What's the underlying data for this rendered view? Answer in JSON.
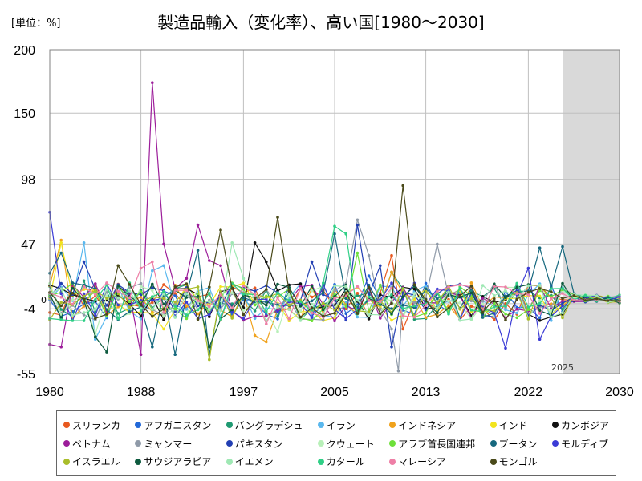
{
  "chart_data": {
    "type": "line",
    "title": "製造品輸入（変化率）、高い国[1980～2030]",
    "unit_label": "[単位：%]",
    "xlabel": "",
    "ylabel": "",
    "xlim": [
      1980,
      2030
    ],
    "ylim": [
      -55,
      200
    ],
    "x_ticks": [
      1980,
      1988,
      1997,
      2005,
      2013,
      2022,
      2030
    ],
    "y_ticks": [
      200,
      150,
      98,
      47,
      -4,
      -55
    ],
    "zero_label": "0",
    "forecast_start": 2025,
    "forecast_label": "2025",
    "grid": true,
    "legend_position": "bottom",
    "series": [
      {
        "name": "スリランカ",
        "color": "#e8591f",
        "seed": 3,
        "values": [
          [
            1981,
            -9
          ],
          [
            2010,
            38
          ],
          [
            2011,
            -20
          ],
          [
            2024,
            5
          ]
        ]
      },
      {
        "name": "アフガニスタン",
        "color": "#2268d8",
        "seed": 7,
        "values": [
          [
            2008,
            22
          ],
          [
            2016,
            10
          ]
        ]
      },
      {
        "name": "バングラデシュ",
        "color": "#1f9a72",
        "seed": 11,
        "values": [
          [
            1983,
            18
          ],
          [
            2010,
            25
          ]
        ]
      },
      {
        "name": "イラン",
        "color": "#5ab8ee",
        "seed": 13,
        "values": [
          [
            1983,
            48
          ],
          [
            1984,
            -28
          ],
          [
            1989,
            26
          ],
          [
            1990,
            30
          ]
        ]
      },
      {
        "name": "インドネシア",
        "color": "#f0a21c",
        "seed": 17,
        "values": [
          [
            1981,
            50
          ],
          [
            1998,
            -25
          ],
          [
            1999,
            -30
          ],
          [
            2010,
            25
          ]
        ]
      },
      {
        "name": "インド",
        "color": "#f2e41e",
        "seed": 19,
        "values": [
          [
            1981,
            48
          ],
          [
            1990,
            -20
          ]
        ]
      },
      {
        "name": "カンボジア",
        "color": "#111111",
        "seed": 23,
        "values": [
          [
            1998,
            48
          ],
          [
            1999,
            33
          ],
          [
            2010,
            5
          ],
          [
            2011,
            13
          ]
        ]
      },
      {
        "name": "ベトナム",
        "color": "#9c1d9a",
        "seed": 29,
        "values": [
          [
            1980,
            -32
          ],
          [
            1981,
            -34
          ],
          [
            1988,
            -40
          ],
          [
            1989,
            174
          ],
          [
            1990,
            47
          ],
          [
            1992,
            20
          ],
          [
            1993,
            62
          ],
          [
            1994,
            34
          ],
          [
            1995,
            30
          ]
        ]
      },
      {
        "name": "ミャンマー",
        "color": "#8f9aa8",
        "seed": 31,
        "values": [
          [
            2007,
            66
          ],
          [
            2008,
            38
          ],
          [
            2010,
            -20
          ],
          [
            2010.6,
            -53
          ],
          [
            2011,
            8
          ],
          [
            2013,
            4
          ],
          [
            2014,
            47
          ]
        ]
      },
      {
        "name": "パキスタン",
        "color": "#223fb3",
        "seed": 37,
        "values": [
          [
            1983,
            33
          ],
          [
            2001,
            2
          ],
          [
            2003,
            33
          ],
          [
            2007,
            62
          ],
          [
            2009,
            30
          ],
          [
            2010,
            -34
          ]
        ]
      },
      {
        "name": "クウェート",
        "color": "#b8f0b8",
        "seed": 41,
        "values": [
          [
            1984,
            -24
          ],
          [
            2000,
            -22
          ]
        ]
      },
      {
        "name": "アラブ首長国連邦",
        "color": "#6ee03a",
        "seed": 43,
        "values": [
          [
            2007,
            40
          ],
          [
            2011,
            12
          ]
        ]
      },
      {
        "name": "ブータン",
        "color": "#16687e",
        "seed": 47,
        "values": [
          [
            1980,
            24
          ],
          [
            1981,
            40
          ],
          [
            1989,
            -34
          ],
          [
            1991,
            -40
          ],
          [
            1993,
            42
          ],
          [
            1994,
            -40
          ],
          [
            2005,
            55
          ],
          [
            2022,
            10
          ],
          [
            2023,
            44
          ],
          [
            2025,
            45
          ],
          [
            2026,
            8
          ]
        ]
      },
      {
        "name": "モルディブ",
        "color": "#3b3bd6",
        "seed": 53,
        "values": [
          [
            1980,
            72
          ],
          [
            1981,
            8
          ],
          [
            2022,
            28
          ],
          [
            2023,
            -28
          ],
          [
            2020,
            -35
          ]
        ]
      },
      {
        "name": "イスラエル",
        "color": "#a9bd2a",
        "seed": 59,
        "values": [
          [
            1994,
            -44
          ],
          [
            1995,
            10
          ]
        ]
      },
      {
        "name": "サウジアラビア",
        "color": "#0d5a3e",
        "seed": 61,
        "values": [
          [
            1984,
            -26
          ],
          [
            1985,
            -38
          ],
          [
            1994,
            -34
          ]
        ]
      },
      {
        "name": "イエメン",
        "color": "#9fe8b4",
        "seed": 67,
        "values": [
          [
            1996,
            48
          ],
          [
            1997,
            20
          ]
        ]
      },
      {
        "name": "カタール",
        "color": "#2fcf86",
        "seed": 71,
        "values": [
          [
            2005,
            61
          ],
          [
            2006,
            55
          ],
          [
            2025,
            12
          ],
          [
            2030,
            7
          ]
        ]
      },
      {
        "name": "マレーシア",
        "color": "#ee7fa6",
        "seed": 73,
        "values": [
          [
            1988,
            28
          ],
          [
            1989,
            33
          ],
          [
            1999,
            -16
          ],
          [
            2000,
            5
          ]
        ]
      },
      {
        "name": "モンゴル",
        "color": "#4a4a1a",
        "seed": 79,
        "values": [
          [
            1986,
            30
          ],
          [
            1995,
            58
          ],
          [
            1996,
            12
          ],
          [
            2000,
            68
          ],
          [
            2001,
            10
          ],
          [
            2011,
            93
          ],
          [
            2012,
            15
          ]
        ]
      }
    ]
  }
}
